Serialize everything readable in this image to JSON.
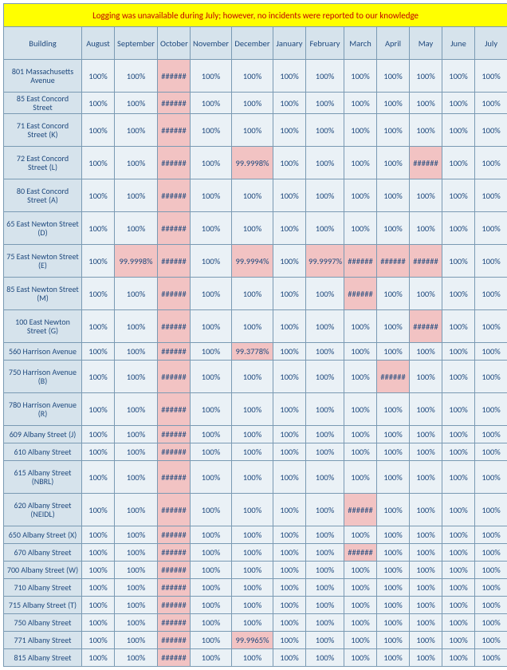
{
  "banner": "Logging was unavailable during July; however, no incidents were reported to our knowledge",
  "months": [
    "August",
    "September",
    "October",
    "November",
    "December",
    "January",
    "February",
    "March",
    "April",
    "May",
    "June",
    "July"
  ],
  "buildingHeader": "Building",
  "colors": {
    "headerBg": "#d6e3ec",
    "cellBg": "#eaf1f6",
    "pinkBg": "#f2c3c3",
    "bannerBg": "#ffff00",
    "bannerText": "#c00000",
    "text": "#1f497d",
    "border": "#7a9ab3"
  },
  "rows": [
    {
      "name": "801 Massachusetts Avenue",
      "tall": true,
      "cells": [
        {
          "v": "100%"
        },
        {
          "v": "100%"
        },
        {
          "v": "######",
          "p": true
        },
        {
          "v": "100%"
        },
        {
          "v": "100%"
        },
        {
          "v": "100%"
        },
        {
          "v": "100%"
        },
        {
          "v": "100%"
        },
        {
          "v": "100%"
        },
        {
          "v": "100%"
        },
        {
          "v": "100%"
        },
        {
          "v": "100%"
        }
      ]
    },
    {
      "name": "85 East Concord Street",
      "cells": [
        {
          "v": "100%"
        },
        {
          "v": "100%"
        },
        {
          "v": "######",
          "p": true
        },
        {
          "v": "100%"
        },
        {
          "v": "100%"
        },
        {
          "v": "100%"
        },
        {
          "v": "100%"
        },
        {
          "v": "100%"
        },
        {
          "v": "100%"
        },
        {
          "v": "100%"
        },
        {
          "v": "100%"
        },
        {
          "v": "100%"
        }
      ]
    },
    {
      "name": "71 East Concord Street (K)",
      "tall": true,
      "cells": [
        {
          "v": "100%"
        },
        {
          "v": "100%"
        },
        {
          "v": "######",
          "p": true
        },
        {
          "v": "100%"
        },
        {
          "v": "100%"
        },
        {
          "v": "100%"
        },
        {
          "v": "100%"
        },
        {
          "v": "100%"
        },
        {
          "v": "100%"
        },
        {
          "v": "100%"
        },
        {
          "v": "100%"
        },
        {
          "v": "100%"
        }
      ]
    },
    {
      "name": "72 East Concord Street (L)",
      "tall": true,
      "cells": [
        {
          "v": "100%"
        },
        {
          "v": "100%"
        },
        {
          "v": "######",
          "p": true
        },
        {
          "v": "100%"
        },
        {
          "v": "99.9998%",
          "p": true
        },
        {
          "v": "100%"
        },
        {
          "v": "100%"
        },
        {
          "v": "100%"
        },
        {
          "v": "100%"
        },
        {
          "v": "######",
          "p": true
        },
        {
          "v": "100%"
        },
        {
          "v": "100%"
        }
      ]
    },
    {
      "name": "80 East Concord Street (A)",
      "tall": true,
      "cells": [
        {
          "v": "100%"
        },
        {
          "v": "100%"
        },
        {
          "v": "######",
          "p": true
        },
        {
          "v": "100%"
        },
        {
          "v": "100%"
        },
        {
          "v": "100%"
        },
        {
          "v": "100%"
        },
        {
          "v": "100%"
        },
        {
          "v": "100%"
        },
        {
          "v": "100%"
        },
        {
          "v": "100%"
        },
        {
          "v": "100%"
        }
      ]
    },
    {
      "name": "65 East Newton Street (D)",
      "tall": true,
      "cells": [
        {
          "v": "100%"
        },
        {
          "v": "100%"
        },
        {
          "v": "######",
          "p": true
        },
        {
          "v": "100%"
        },
        {
          "v": "100%"
        },
        {
          "v": "100%"
        },
        {
          "v": "100%"
        },
        {
          "v": "100%"
        },
        {
          "v": "100%"
        },
        {
          "v": "100%"
        },
        {
          "v": "100%"
        },
        {
          "v": "100%"
        }
      ]
    },
    {
      "name": "75 East Newton Street (E)",
      "tall": true,
      "cells": [
        {
          "v": "100%"
        },
        {
          "v": "99.9998%",
          "p": true
        },
        {
          "v": "######",
          "p": true
        },
        {
          "v": "100%"
        },
        {
          "v": "99.9994%",
          "p": true
        },
        {
          "v": "100%"
        },
        {
          "v": "99.9997%",
          "p": true
        },
        {
          "v": "######",
          "p": true
        },
        {
          "v": "######",
          "p": true
        },
        {
          "v": "######",
          "p": true
        },
        {
          "v": "100%"
        },
        {
          "v": "100%"
        }
      ]
    },
    {
      "name": "85 East Newton Street (M)",
      "tall": true,
      "cells": [
        {
          "v": "100%"
        },
        {
          "v": "100%"
        },
        {
          "v": "######",
          "p": true
        },
        {
          "v": "100%"
        },
        {
          "v": "100%"
        },
        {
          "v": "100%"
        },
        {
          "v": "100%"
        },
        {
          "v": "######",
          "p": true
        },
        {
          "v": "100%"
        },
        {
          "v": "100%"
        },
        {
          "v": "100%"
        },
        {
          "v": "100%"
        }
      ]
    },
    {
      "name": "100 East Newton Street (G)",
      "tall": true,
      "cells": [
        {
          "v": "100%"
        },
        {
          "v": "100%"
        },
        {
          "v": "######",
          "p": true
        },
        {
          "v": "100%"
        },
        {
          "v": "100%"
        },
        {
          "v": "100%"
        },
        {
          "v": "100%"
        },
        {
          "v": "100%"
        },
        {
          "v": "100%"
        },
        {
          "v": "######",
          "p": true
        },
        {
          "v": "100%"
        },
        {
          "v": "100%"
        }
      ]
    },
    {
      "name": "560 Harrison Avenue",
      "cells": [
        {
          "v": "100%"
        },
        {
          "v": "100%"
        },
        {
          "v": "######",
          "p": true
        },
        {
          "v": "100%"
        },
        {
          "v": "99.3778%",
          "p": true
        },
        {
          "v": "100%"
        },
        {
          "v": "100%"
        },
        {
          "v": "100%"
        },
        {
          "v": "100%"
        },
        {
          "v": "100%"
        },
        {
          "v": "100%"
        },
        {
          "v": "100%"
        }
      ]
    },
    {
      "name": "750 Harrison Avenue (B)",
      "tall": true,
      "cells": [
        {
          "v": "100%"
        },
        {
          "v": "100%"
        },
        {
          "v": "######",
          "p": true
        },
        {
          "v": "100%"
        },
        {
          "v": "100%"
        },
        {
          "v": "100%"
        },
        {
          "v": "100%"
        },
        {
          "v": "100%"
        },
        {
          "v": "######",
          "p": true
        },
        {
          "v": "100%"
        },
        {
          "v": "100%"
        },
        {
          "v": "100%"
        }
      ]
    },
    {
      "name": "780 Harrison Avenue (R)",
      "tall": true,
      "cells": [
        {
          "v": "100%"
        },
        {
          "v": "100%"
        },
        {
          "v": "######",
          "p": true
        },
        {
          "v": "100%"
        },
        {
          "v": "100%"
        },
        {
          "v": "100%"
        },
        {
          "v": "100%"
        },
        {
          "v": "100%"
        },
        {
          "v": "100%"
        },
        {
          "v": "100%"
        },
        {
          "v": "100%"
        },
        {
          "v": "100%"
        }
      ]
    },
    {
      "name": "609 Albany Street (J)",
      "cells": [
        {
          "v": "100%"
        },
        {
          "v": "100%"
        },
        {
          "v": "######",
          "p": true
        },
        {
          "v": "100%"
        },
        {
          "v": "100%"
        },
        {
          "v": "100%"
        },
        {
          "v": "100%"
        },
        {
          "v": "100%"
        },
        {
          "v": "100%"
        },
        {
          "v": "100%"
        },
        {
          "v": "100%"
        },
        {
          "v": "100%"
        }
      ]
    },
    {
      "name": "610 Albany Street",
      "cells": [
        {
          "v": "100%"
        },
        {
          "v": "100%"
        },
        {
          "v": "######",
          "p": true
        },
        {
          "v": "100%"
        },
        {
          "v": "100%"
        },
        {
          "v": "100%"
        },
        {
          "v": "100%"
        },
        {
          "v": "100%"
        },
        {
          "v": "100%"
        },
        {
          "v": "100%"
        },
        {
          "v": "100%"
        },
        {
          "v": "100%"
        }
      ]
    },
    {
      "name": "615 Albany Street (NBRL)",
      "tall": true,
      "cells": [
        {
          "v": "100%"
        },
        {
          "v": "100%"
        },
        {
          "v": "######",
          "p": true
        },
        {
          "v": "100%"
        },
        {
          "v": "100%"
        },
        {
          "v": "100%"
        },
        {
          "v": "100%"
        },
        {
          "v": "100%"
        },
        {
          "v": "100%"
        },
        {
          "v": "100%"
        },
        {
          "v": "100%"
        },
        {
          "v": "100%"
        }
      ]
    },
    {
      "name": "620 Albany Street (NEIDL)",
      "tall": true,
      "cells": [
        {
          "v": "100%"
        },
        {
          "v": "100%"
        },
        {
          "v": "######",
          "p": true
        },
        {
          "v": "100%"
        },
        {
          "v": "100%"
        },
        {
          "v": "100%"
        },
        {
          "v": "100%"
        },
        {
          "v": "######",
          "p": true
        },
        {
          "v": "100%"
        },
        {
          "v": "100%"
        },
        {
          "v": "100%"
        },
        {
          "v": "100%"
        }
      ]
    },
    {
      "name": "650 Albany Street (X)",
      "cells": [
        {
          "v": "100%"
        },
        {
          "v": "100%"
        },
        {
          "v": "######",
          "p": true
        },
        {
          "v": "100%"
        },
        {
          "v": "100%"
        },
        {
          "v": "100%"
        },
        {
          "v": "100%"
        },
        {
          "v": "100%"
        },
        {
          "v": "100%"
        },
        {
          "v": "100%"
        },
        {
          "v": "100%"
        },
        {
          "v": "100%"
        }
      ]
    },
    {
      "name": "670 Albany Street",
      "cells": [
        {
          "v": "100%"
        },
        {
          "v": "100%"
        },
        {
          "v": "######",
          "p": true
        },
        {
          "v": "100%"
        },
        {
          "v": "100%"
        },
        {
          "v": "100%"
        },
        {
          "v": "100%"
        },
        {
          "v": "######",
          "p": true
        },
        {
          "v": "100%"
        },
        {
          "v": "100%"
        },
        {
          "v": "100%"
        },
        {
          "v": "100%"
        }
      ]
    },
    {
      "name": "700 Albany Street (W)",
      "cells": [
        {
          "v": "100%"
        },
        {
          "v": "100%"
        },
        {
          "v": "######",
          "p": true
        },
        {
          "v": "100%"
        },
        {
          "v": "100%"
        },
        {
          "v": "100%"
        },
        {
          "v": "100%"
        },
        {
          "v": "100%"
        },
        {
          "v": "100%"
        },
        {
          "v": "100%"
        },
        {
          "v": "100%"
        },
        {
          "v": "100%"
        }
      ]
    },
    {
      "name": "710 Albany Street",
      "cells": [
        {
          "v": "100%"
        },
        {
          "v": "100%"
        },
        {
          "v": "######",
          "p": true
        },
        {
          "v": "100%"
        },
        {
          "v": "100%"
        },
        {
          "v": "100%"
        },
        {
          "v": "100%"
        },
        {
          "v": "100%"
        },
        {
          "v": "100%"
        },
        {
          "v": "100%"
        },
        {
          "v": "100%"
        },
        {
          "v": "100%"
        }
      ]
    },
    {
      "name": "715 Albany Street (T)",
      "cells": [
        {
          "v": "100%"
        },
        {
          "v": "100%"
        },
        {
          "v": "######",
          "p": true
        },
        {
          "v": "100%"
        },
        {
          "v": "100%"
        },
        {
          "v": "100%"
        },
        {
          "v": "100%"
        },
        {
          "v": "100%"
        },
        {
          "v": "100%"
        },
        {
          "v": "100%"
        },
        {
          "v": "100%"
        },
        {
          "v": "100%"
        }
      ]
    },
    {
      "name": "750 Albany Street",
      "cells": [
        {
          "v": "100%"
        },
        {
          "v": "100%"
        },
        {
          "v": "######",
          "p": true
        },
        {
          "v": "100%"
        },
        {
          "v": "100%"
        },
        {
          "v": "100%"
        },
        {
          "v": "100%"
        },
        {
          "v": "100%"
        },
        {
          "v": "100%"
        },
        {
          "v": "100%"
        },
        {
          "v": "100%"
        },
        {
          "v": "100%"
        }
      ]
    },
    {
      "name": "771 Albany Street",
      "cells": [
        {
          "v": "100%"
        },
        {
          "v": "100%"
        },
        {
          "v": "######",
          "p": true
        },
        {
          "v": "100%"
        },
        {
          "v": "99.9965%",
          "p": true
        },
        {
          "v": "100%"
        },
        {
          "v": "100%"
        },
        {
          "v": "100%"
        },
        {
          "v": "100%"
        },
        {
          "v": "100%"
        },
        {
          "v": "100%"
        },
        {
          "v": "100%"
        }
      ]
    },
    {
      "name": "815 Albany Street",
      "cells": [
        {
          "v": "100%"
        },
        {
          "v": "100%"
        },
        {
          "v": "######",
          "p": true
        },
        {
          "v": "100%"
        },
        {
          "v": "100%"
        },
        {
          "v": "100%"
        },
        {
          "v": "100%"
        },
        {
          "v": "100%"
        },
        {
          "v": "100%"
        },
        {
          "v": "100%"
        },
        {
          "v": "100%"
        },
        {
          "v": "100%"
        }
      ]
    }
  ]
}
